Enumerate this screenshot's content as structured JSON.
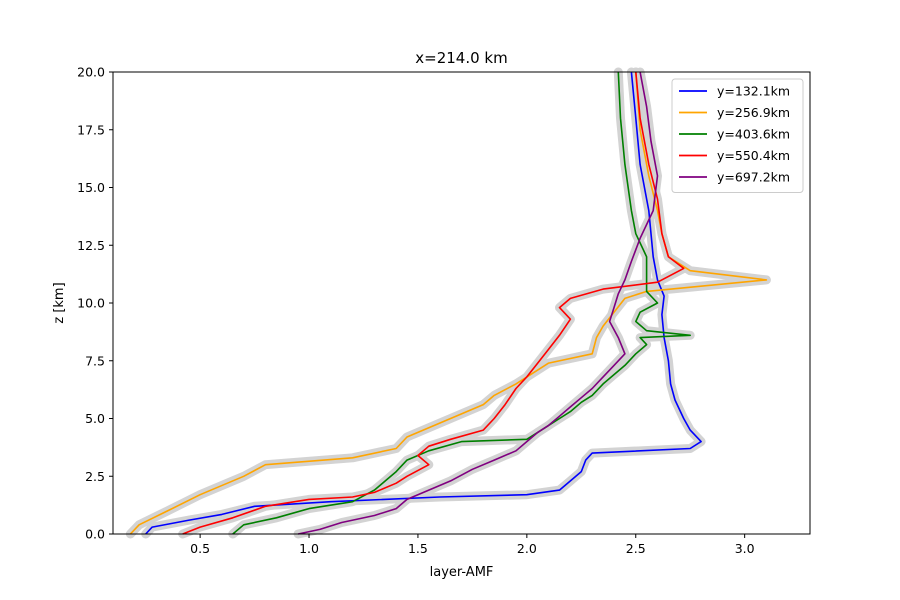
{
  "chart_data": {
    "type": "line",
    "title": "x=214.0 km",
    "xlabel": "layer-AMF",
    "ylabel": "z [km]",
    "xlim": [
      0.1,
      3.3
    ],
    "ylim": [
      0,
      20
    ],
    "xticks": [
      "0.5",
      "1.0",
      "1.5",
      "2.0",
      "2.5",
      "3.0"
    ],
    "yticks": [
      "0.0",
      "2.5",
      "5.0",
      "7.5",
      "10.0",
      "12.5",
      "15.0",
      "17.5",
      "20.0"
    ],
    "grid": false,
    "legend_position": "top-right",
    "uncertainty_band": {
      "color": "#d3d3d3"
    },
    "series": [
      {
        "name": "y=132.1km",
        "color": "#0000ff",
        "points": [
          [
            0.25,
            0
          ],
          [
            0.28,
            0.3
          ],
          [
            0.45,
            0.6
          ],
          [
            0.6,
            0.85
          ],
          [
            0.75,
            1.2
          ],
          [
            1.1,
            1.4
          ],
          [
            1.6,
            1.6
          ],
          [
            2.0,
            1.7
          ],
          [
            2.15,
            1.9
          ],
          [
            2.2,
            2.3
          ],
          [
            2.25,
            2.7
          ],
          [
            2.27,
            3.2
          ],
          [
            2.3,
            3.5
          ],
          [
            2.75,
            3.7
          ],
          [
            2.8,
            4.0
          ],
          [
            2.75,
            4.5
          ],
          [
            2.72,
            5.0
          ],
          [
            2.68,
            5.8
          ],
          [
            2.66,
            6.5
          ],
          [
            2.65,
            7.5
          ],
          [
            2.63,
            8.5
          ],
          [
            2.62,
            9.5
          ],
          [
            2.63,
            10.3
          ],
          [
            2.6,
            11.0
          ],
          [
            2.58,
            12.0
          ],
          [
            2.56,
            14.0
          ],
          [
            2.52,
            16.0
          ],
          [
            2.5,
            18.0
          ],
          [
            2.48,
            20.0
          ]
        ]
      },
      {
        "name": "y=256.9km",
        "color": "#ffa500",
        "points": [
          [
            0.18,
            0
          ],
          [
            0.22,
            0.4
          ],
          [
            0.35,
            1.0
          ],
          [
            0.5,
            1.7
          ],
          [
            0.7,
            2.5
          ],
          [
            0.8,
            3.0
          ],
          [
            1.2,
            3.3
          ],
          [
            1.4,
            3.7
          ],
          [
            1.45,
            4.2
          ],
          [
            1.6,
            4.8
          ],
          [
            1.7,
            5.2
          ],
          [
            1.8,
            5.6
          ],
          [
            1.85,
            6.0
          ],
          [
            1.95,
            6.5
          ],
          [
            2.1,
            7.4
          ],
          [
            2.3,
            7.8
          ],
          [
            2.32,
            8.5
          ],
          [
            2.35,
            9.0
          ],
          [
            2.4,
            9.6
          ],
          [
            2.45,
            10.2
          ],
          [
            2.55,
            10.5
          ],
          [
            3.1,
            11.0
          ],
          [
            2.75,
            11.4
          ],
          [
            2.65,
            12.0
          ],
          [
            2.62,
            13.0
          ],
          [
            2.6,
            14.0
          ],
          [
            2.56,
            15.5
          ],
          [
            2.52,
            17.5
          ],
          [
            2.5,
            20.0
          ]
        ]
      },
      {
        "name": "y=403.6km",
        "color": "#008000",
        "points": [
          [
            0.65,
            0
          ],
          [
            0.7,
            0.4
          ],
          [
            0.85,
            0.7
          ],
          [
            1.0,
            1.1
          ],
          [
            1.2,
            1.4
          ],
          [
            1.3,
            1.9
          ],
          [
            1.35,
            2.3
          ],
          [
            1.4,
            2.7
          ],
          [
            1.45,
            3.2
          ],
          [
            1.55,
            3.6
          ],
          [
            1.7,
            4.0
          ],
          [
            2.0,
            4.1
          ],
          [
            2.05,
            4.4
          ],
          [
            2.1,
            4.7
          ],
          [
            2.15,
            5.0
          ],
          [
            2.2,
            5.3
          ],
          [
            2.25,
            5.7
          ],
          [
            2.3,
            6.0
          ],
          [
            2.35,
            6.5
          ],
          [
            2.4,
            6.9
          ],
          [
            2.45,
            7.3
          ],
          [
            2.5,
            7.8
          ],
          [
            2.55,
            8.2
          ],
          [
            2.52,
            8.5
          ],
          [
            2.75,
            8.6
          ],
          [
            2.55,
            8.8
          ],
          [
            2.5,
            9.2
          ],
          [
            2.52,
            9.6
          ],
          [
            2.6,
            10.0
          ],
          [
            2.55,
            10.5
          ],
          [
            2.55,
            11.0
          ],
          [
            2.55,
            12.0
          ],
          [
            2.5,
            13.0
          ],
          [
            2.48,
            14.0
          ],
          [
            2.45,
            16.0
          ],
          [
            2.43,
            18.0
          ],
          [
            2.42,
            20.0
          ]
        ]
      },
      {
        "name": "y=550.4km",
        "color": "#ff0000",
        "points": [
          [
            0.42,
            0
          ],
          [
            0.5,
            0.3
          ],
          [
            0.65,
            0.7
          ],
          [
            0.8,
            1.2
          ],
          [
            1.0,
            1.5
          ],
          [
            1.2,
            1.6
          ],
          [
            1.3,
            1.8
          ],
          [
            1.4,
            2.2
          ],
          [
            1.45,
            2.5
          ],
          [
            1.55,
            3.0
          ],
          [
            1.5,
            3.4
          ],
          [
            1.55,
            3.8
          ],
          [
            1.65,
            4.1
          ],
          [
            1.8,
            4.5
          ],
          [
            1.85,
            5.0
          ],
          [
            1.9,
            5.6
          ],
          [
            1.95,
            6.3
          ],
          [
            2.0,
            6.8
          ],
          [
            2.05,
            7.4
          ],
          [
            2.1,
            8.0
          ],
          [
            2.15,
            8.6
          ],
          [
            2.2,
            9.3
          ],
          [
            2.15,
            9.8
          ],
          [
            2.2,
            10.2
          ],
          [
            2.35,
            10.6
          ],
          [
            2.6,
            10.9
          ],
          [
            2.72,
            11.5
          ],
          [
            2.65,
            12.0
          ],
          [
            2.62,
            13.0
          ],
          [
            2.6,
            14.5
          ],
          [
            2.56,
            16.0
          ],
          [
            2.52,
            18.0
          ],
          [
            2.5,
            20.0
          ]
        ]
      },
      {
        "name": "y=697.2km",
        "color": "#800080",
        "points": [
          [
            0.95,
            0
          ],
          [
            1.05,
            0.2
          ],
          [
            1.15,
            0.5
          ],
          [
            1.3,
            0.8
          ],
          [
            1.4,
            1.1
          ],
          [
            1.45,
            1.5
          ],
          [
            1.55,
            1.9
          ],
          [
            1.65,
            2.3
          ],
          [
            1.75,
            2.8
          ],
          [
            1.85,
            3.2
          ],
          [
            1.95,
            3.6
          ],
          [
            2.0,
            4.0
          ],
          [
            2.05,
            4.4
          ],
          [
            2.1,
            4.7
          ],
          [
            2.15,
            5.1
          ],
          [
            2.2,
            5.5
          ],
          [
            2.25,
            5.9
          ],
          [
            2.3,
            6.3
          ],
          [
            2.35,
            6.8
          ],
          [
            2.4,
            7.3
          ],
          [
            2.45,
            7.8
          ],
          [
            2.42,
            8.5
          ],
          [
            2.38,
            9.2
          ],
          [
            2.4,
            9.8
          ],
          [
            2.42,
            10.4
          ],
          [
            2.45,
            11.0
          ],
          [
            2.48,
            11.8
          ],
          [
            2.52,
            12.8
          ],
          [
            2.58,
            14.0
          ],
          [
            2.6,
            15.5
          ],
          [
            2.57,
            17.0
          ],
          [
            2.55,
            18.5
          ],
          [
            2.52,
            20.0
          ]
        ]
      }
    ]
  }
}
